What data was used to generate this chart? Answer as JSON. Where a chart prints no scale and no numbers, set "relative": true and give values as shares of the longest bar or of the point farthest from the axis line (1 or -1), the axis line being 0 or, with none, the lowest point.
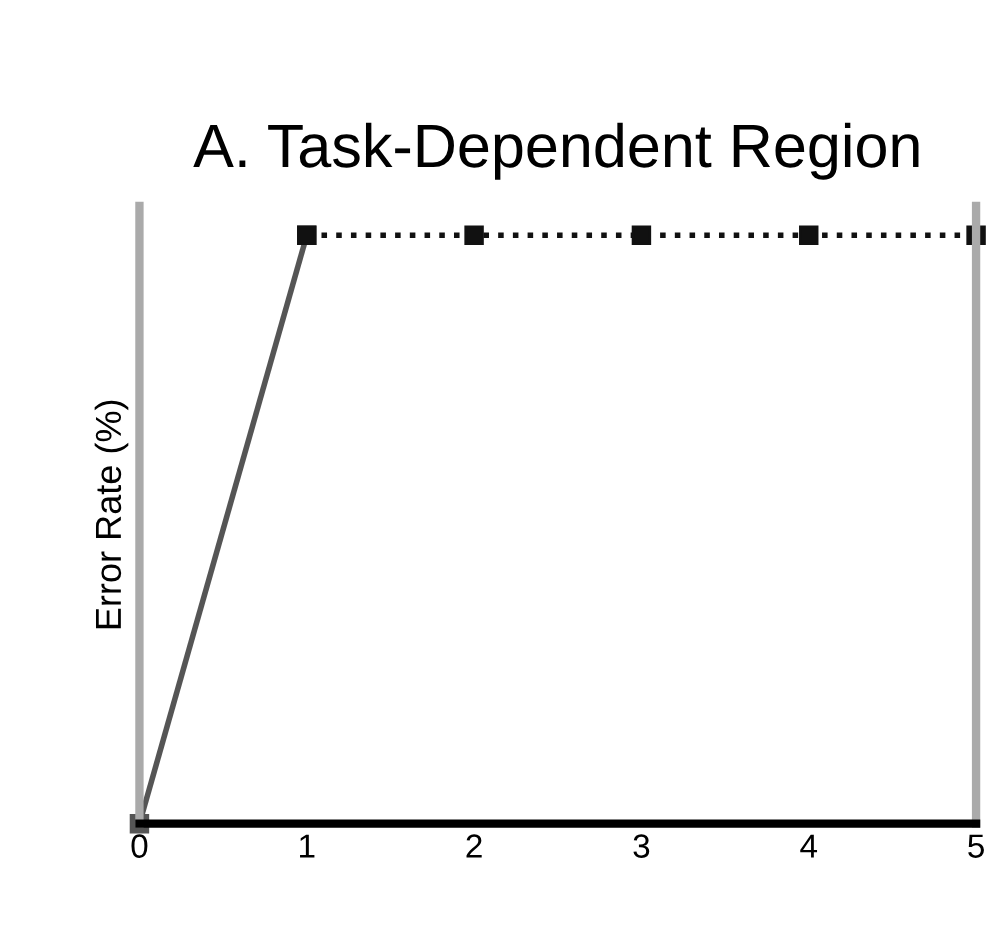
{
  "chart_data": {
    "type": "line",
    "title": "A. Task-Dependent Region",
    "ylabel": "Error Rate (%)",
    "relative": true,
    "xlim": [
      0,
      5
    ],
    "xticks": [
      0,
      1,
      2,
      3,
      4,
      5
    ],
    "grid": false,
    "series": [
      {
        "x": [
          0,
          1
        ],
        "values": [
          0,
          1
        ],
        "color": "#555555",
        "line_style": "solid",
        "marker": "square"
      },
      {
        "x": [
          1,
          2,
          3,
          4,
          5
        ],
        "values": [
          1,
          1,
          1,
          1,
          1
        ],
        "color": "#111111",
        "line_style": "dotted",
        "marker": "square"
      }
    ]
  }
}
